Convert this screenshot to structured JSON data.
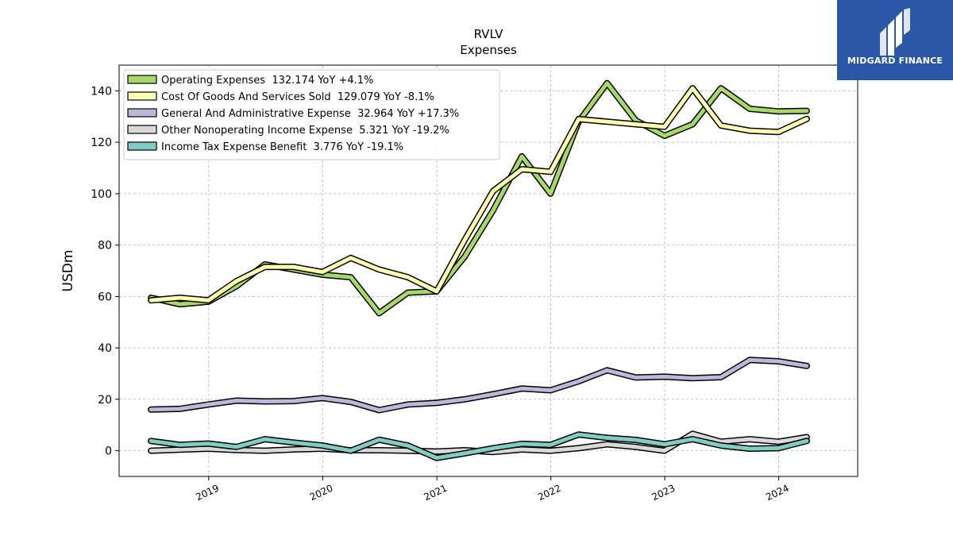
{
  "chart_data": {
    "type": "line",
    "title": "RVLV",
    "subtitle": "Expenses",
    "ylabel": "USDm",
    "xlabel": "",
    "ylim": [
      -10,
      150
    ],
    "xlim": [
      "2018-03-20",
      "2024-09-10"
    ],
    "yticks": [
      0,
      20,
      40,
      60,
      80,
      100,
      120,
      140
    ],
    "xticks": [
      {
        "label": "2019",
        "date": "2019-01-01"
      },
      {
        "label": "2020",
        "date": "2020-01-01"
      },
      {
        "label": "2021",
        "date": "2021-01-01"
      },
      {
        "label": "2022",
        "date": "2022-01-01"
      },
      {
        "label": "2023",
        "date": "2023-01-01"
      },
      {
        "label": "2024",
        "date": "2024-01-01"
      }
    ],
    "grid": true,
    "legend_position": "top-left",
    "x": [
      "2018-06-30",
      "2018-09-30",
      "2018-12-31",
      "2019-03-31",
      "2019-06-30",
      "2019-09-30",
      "2019-12-31",
      "2020-03-31",
      "2020-06-30",
      "2020-09-30",
      "2020-12-31",
      "2021-03-31",
      "2021-06-30",
      "2021-09-30",
      "2021-12-31",
      "2022-03-31",
      "2022-06-30",
      "2022-09-30",
      "2022-12-31",
      "2023-03-31",
      "2023-06-30",
      "2023-09-30",
      "2023-12-31",
      "2024-03-31"
    ],
    "series": [
      {
        "name": "Operating Expenses",
        "legend": "Operating Expenses  132.174 YoY +4.1%",
        "color": "#a6d96a",
        "values": [
          59.5,
          57.0,
          58.0,
          64.0,
          72.5,
          70.5,
          68.5,
          67.5,
          53.5,
          61.5,
          62.0,
          75.5,
          93.5,
          114.5,
          100.0,
          128.0,
          143.0,
          128.5,
          122.5,
          127.0,
          141.0,
          133.0,
          132.0,
          132.2
        ]
      },
      {
        "name": "Cost Of Goods And Services Sold",
        "legend": "Cost Of Goods And Services Sold  129.079 YoY -8.1%",
        "color": "#ffffb3",
        "values": [
          58.5,
          59.5,
          58.5,
          66.0,
          71.5,
          71.5,
          69.5,
          75.0,
          70.5,
          67.5,
          62.0,
          82.0,
          101.0,
          109.5,
          108.5,
          129.0,
          128.0,
          127.0,
          126.0,
          141.0,
          126.5,
          124.5,
          124.0,
          129.1
        ]
      },
      {
        "name": "General And Administrative Expense",
        "legend": "General And Administrative Expense  32.964 YoY +17.3%",
        "color": "#bcb8d9",
        "values": [
          16.0,
          16.3,
          18.0,
          19.5,
          19.2,
          19.3,
          20.5,
          19.0,
          15.8,
          18.0,
          18.6,
          20.0,
          22.0,
          24.2,
          23.5,
          27.0,
          31.3,
          28.5,
          28.8,
          28.2,
          28.6,
          35.3,
          34.8,
          33.0
        ]
      },
      {
        "name": "Other Nonoperating Income Expense",
        "legend": "Other Nonoperating Income Expense  5.321 YoY -19.2%",
        "color": "#d9d9d9",
        "values": [
          0.0,
          0.4,
          0.8,
          0.3,
          0.0,
          0.5,
          0.8,
          0.2,
          0.2,
          0.0,
          -0.3,
          0.2,
          -0.5,
          0.5,
          0.0,
          1.0,
          2.5,
          1.5,
          0.0,
          6.6,
          3.5,
          4.5,
          3.5,
          5.3
        ]
      },
      {
        "name": "Income Tax Expense Benefit",
        "legend": "Income Tax Expense Benefit  3.776 YoY -19.1%",
        "color": "#80cdc1",
        "values": [
          3.8,
          2.3,
          2.8,
          1.5,
          4.5,
          3.2,
          2.0,
          0.0,
          4.3,
          2.0,
          -2.8,
          -1.0,
          1.0,
          2.7,
          2.3,
          6.3,
          5.0,
          4.2,
          2.5,
          4.5,
          2.0,
          0.8,
          1.0,
          3.8
        ]
      }
    ]
  },
  "branding": {
    "logo_text": "MIDGARD FINANCE",
    "logo_color": "#2b57a7"
  }
}
